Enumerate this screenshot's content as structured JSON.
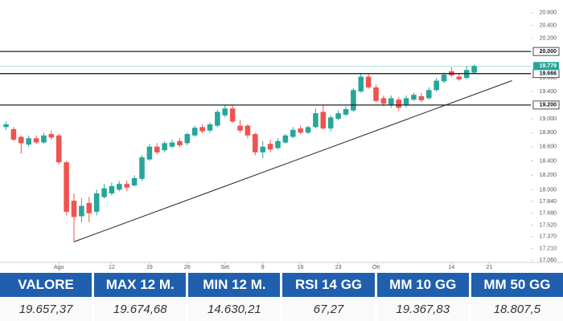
{
  "chart_data": {
    "type": "candlestick",
    "log": true,
    "ylim": [
      17030,
      20800
    ],
    "yticks": [
      {
        "value": 20600,
        "label": "20.600"
      },
      {
        "value": 20400,
        "label": "20.400"
      },
      {
        "value": 20200,
        "label": "20.200"
      },
      {
        "value": 19600,
        "label": "19.600"
      },
      {
        "value": 19400,
        "label": "19.400"
      },
      {
        "value": 19000,
        "label": "19.000"
      },
      {
        "value": 18800,
        "label": "18.800"
      },
      {
        "value": 18600,
        "label": "18.600"
      },
      {
        "value": 18400,
        "label": "18.400"
      },
      {
        "value": 18200,
        "label": "18.200"
      },
      {
        "value": 18000,
        "label": "18.000"
      },
      {
        "value": 17840,
        "label": "17.840"
      },
      {
        "value": 17680,
        "label": "17.680"
      },
      {
        "value": 17520,
        "label": "17.520"
      },
      {
        "value": 17370,
        "label": "17.370"
      },
      {
        "value": 17210,
        "label": "17.210"
      },
      {
        "value": 17060,
        "label": "17.060"
      }
    ],
    "xlim": [
      -0.8,
      69.5
    ],
    "xticks": [
      {
        "value": 7,
        "label": "Ago"
      },
      {
        "value": 14,
        "label": "12"
      },
      {
        "value": 19,
        "label": "19"
      },
      {
        "value": 24,
        "label": "26"
      },
      {
        "value": 29,
        "label": "Set"
      },
      {
        "value": 34,
        "label": "9"
      },
      {
        "value": 39,
        "label": "16"
      },
      {
        "value": 44,
        "label": "23"
      },
      {
        "value": 49,
        "label": "Ott"
      },
      {
        "value": 59,
        "label": "14"
      },
      {
        "value": 64,
        "label": "21"
      }
    ],
    "up_color": "#26a69a",
    "down_color": "#ef5350",
    "open": [
      18880,
      18850,
      18740,
      18630,
      18720,
      18660,
      18780,
      18760,
      18380,
      17850,
      17640,
      17820,
      17700,
      17900,
      17950,
      18000,
      18080,
      18060,
      18150,
      18420,
      18600,
      18550,
      18600,
      18680,
      18650,
      18760,
      18880,
      18830,
      18900,
      19050,
      19150,
      18900,
      18900,
      18780,
      18520,
      18640,
      18580,
      18660,
      18740,
      18860,
      18800,
      18880,
      19100,
      18860,
      19000,
      19060,
      19120,
      19400,
      19620,
      19460,
      19300,
      19200,
      19280,
      19200,
      19280,
      19330,
      19300,
      19420,
      19550,
      19700,
      19620,
      19600,
      19680
    ],
    "high": [
      18960,
      18880,
      18760,
      18760,
      18760,
      18800,
      18830,
      18780,
      18400,
      17950,
      17880,
      17900,
      18000,
      18080,
      18100,
      18120,
      18130,
      18200,
      18480,
      18640,
      18650,
      18680,
      18700,
      18720,
      18800,
      18900,
      18920,
      18950,
      19130,
      19200,
      19200,
      18980,
      18920,
      18800,
      18680,
      18700,
      18720,
      18780,
      18880,
      18900,
      18900,
      19150,
      19200,
      19050,
      19120,
      19180,
      19450,
      19660,
      19660,
      19500,
      19340,
      19340,
      19320,
      19340,
      19380,
      19380,
      19460,
      19600,
      19680,
      19760,
      19660,
      19780,
      19800
    ],
    "low": [
      18840,
      18680,
      18500,
      18600,
      18640,
      18640,
      18700,
      18350,
      17650,
      17290,
      17560,
      17560,
      17650,
      17880,
      17920,
      17980,
      17980,
      18040,
      18120,
      18400,
      18490,
      18520,
      18580,
      18590,
      18620,
      18740,
      18790,
      18800,
      18880,
      19020,
      18940,
      18800,
      18720,
      18480,
      18440,
      18520,
      18560,
      18640,
      18720,
      18780,
      18780,
      18860,
      18840,
      18820,
      18980,
      19040,
      19100,
      19380,
      19440,
      19240,
      19180,
      19160,
      19120,
      19160,
      19260,
      19240,
      19280,
      19400,
      19520,
      19620,
      19560,
      19580,
      19660
    ],
    "close": [
      18920,
      18700,
      18650,
      18720,
      18660,
      18760,
      18730,
      18380,
      17700,
      17630,
      17780,
      17680,
      17950,
      18020,
      18050,
      18080,
      18030,
      18160,
      18450,
      18600,
      18520,
      18650,
      18660,
      18620,
      18780,
      18870,
      18820,
      18920,
      19100,
      19150,
      18960,
      18830,
      18760,
      18520,
      18600,
      18560,
      18680,
      18760,
      18840,
      18800,
      18880,
      19080,
      18860,
      19020,
      19080,
      19140,
      19420,
      19620,
      19460,
      19260,
      19220,
      19300,
      19160,
      19300,
      19350,
      19270,
      19420,
      19560,
      19650,
      19640,
      19580,
      19720,
      19779
    ],
    "levels": [
      {
        "value": 20000,
        "label": "20.000"
      },
      {
        "value": 19666,
        "label": "19.666"
      },
      {
        "value": 19200,
        "label": "19.200"
      }
    ],
    "last_price": {
      "value": 19779,
      "label": "19.779"
    },
    "trendline": {
      "x": [
        9,
        67
      ],
      "y": [
        17300,
        19560
      ]
    }
  },
  "table": {
    "header_color": "#1f5fae",
    "headers": [
      "VALORE",
      "MAX 12 M.",
      "MIN 12 M.",
      "RSI 14 GG",
      "MM 10 GG",
      "MM 50 GG"
    ],
    "rows": [
      [
        "19.657,37",
        "19.674,68",
        "14.630,21",
        "67,27",
        "19.367,83",
        "18.807,5"
      ]
    ]
  }
}
